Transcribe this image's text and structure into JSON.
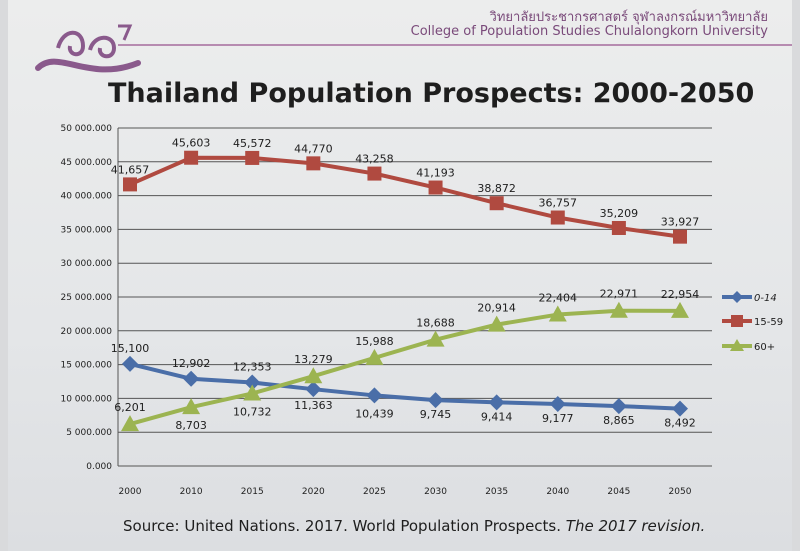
{
  "header": {
    "thai_name": "วิทยาลัยประชากรศาสตร์ จุฬาลงกรณ์มหาวิทยาลัย",
    "english_name": "College of Population Studies Chulalongkorn University"
  },
  "logo_label": "logo",
  "source": {
    "prefix": "Source: United Nations. 2017. World Population Prospects. ",
    "italic": "The 2017 revision."
  },
  "colors": {
    "s0_14": "#4a6ea8",
    "s15_59": "#b04a40",
    "s60": "#9cb451",
    "grid": "#555555"
  },
  "chart_data": {
    "type": "line",
    "title": "Thailand Population Prospects: 2000-2050",
    "categories": [
      "2000",
      "2010",
      "2015",
      "2020",
      "2025",
      "2030",
      "2035",
      "2040",
      "2045",
      "2050"
    ],
    "y_ticks": [
      "0.000",
      "5 000.000",
      "10 000.000",
      "15 000.000",
      "20 000.000",
      "25 000.000",
      "30 000.000",
      "35 000.000",
      "40 000.000",
      "45 000.000",
      "50 000.000"
    ],
    "ylim": [
      0,
      50000000
    ],
    "grid": true,
    "legend_position": "right",
    "series": [
      {
        "name": "0-14",
        "values": [
          15100000,
          12902000,
          12353000,
          11363000,
          10439000,
          9745000,
          9414000,
          9177000,
          8865000,
          8492000
        ],
        "labels": [
          "15,100",
          "12,902",
          "12,353",
          "11,363",
          "10,439",
          "9,745",
          "9,414",
          "9,177",
          "8,865",
          "8,492"
        ]
      },
      {
        "name": "15-59",
        "values": [
          41657000,
          45603000,
          45572000,
          44770000,
          43258000,
          41193000,
          38872000,
          36757000,
          35209000,
          33927000
        ],
        "labels": [
          "41,657",
          "45,603",
          "45,572",
          "44,770",
          "43,258",
          "41,193",
          "38,872",
          "36,757",
          "35,209",
          "33,927"
        ]
      },
      {
        "name": "60+",
        "values": [
          6201000,
          8703000,
          10732000,
          13279000,
          15988000,
          18688000,
          20914000,
          22404000,
          22971000,
          22954000
        ],
        "labels": [
          "6,201",
          "8,703",
          "10,732",
          "13,279",
          "15,988",
          "18,688",
          "20,914",
          "22,404",
          "22,971",
          "22,954"
        ]
      }
    ]
  }
}
